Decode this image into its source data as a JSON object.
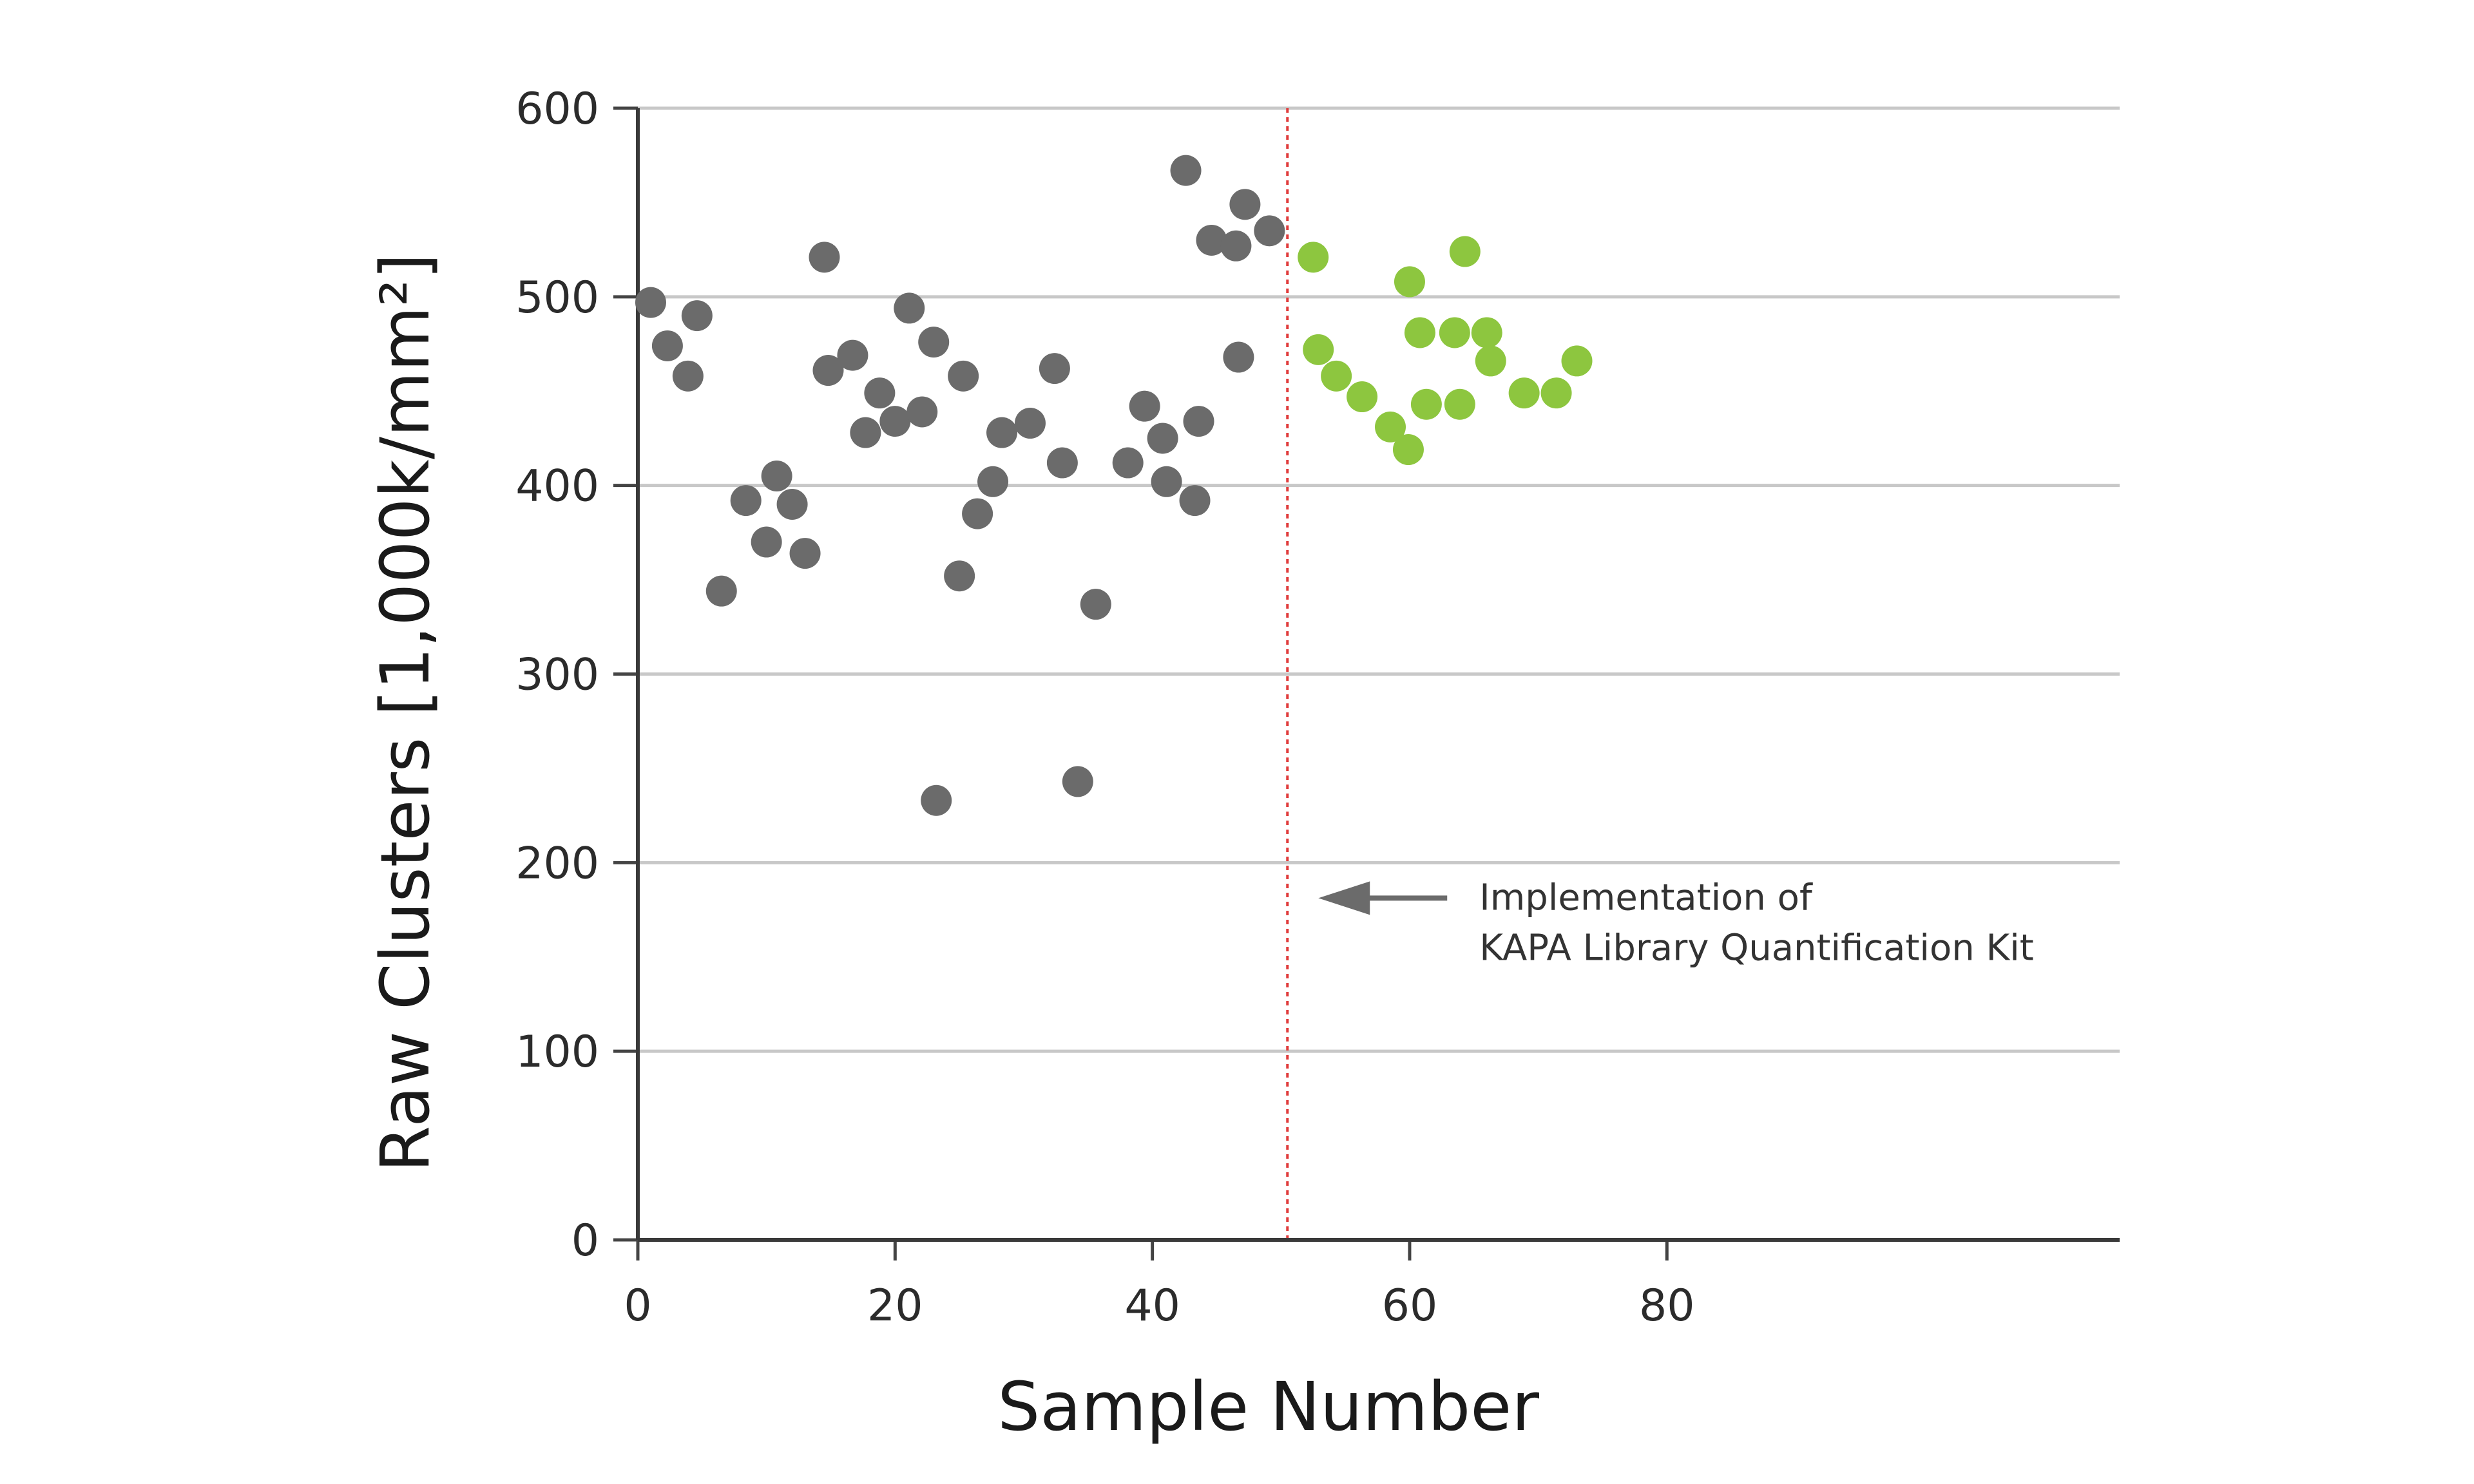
{
  "chart_data": {
    "type": "scatter",
    "xlabel": "Sample Number",
    "ylabel": "Raw Clusters [1,000k/mm²]",
    "xlim": [
      0,
      105
    ],
    "ylim": [
      0,
      600
    ],
    "x_ticks": [
      0,
      20,
      40,
      60,
      80
    ],
    "y_ticks": [
      0,
      100,
      200,
      300,
      400,
      500,
      600
    ],
    "grid": "horizontal",
    "series": [
      {
        "color": "#6b6b6b",
        "points": [
          [
            1,
            497
          ],
          [
            2.3,
            474
          ],
          [
            3.9,
            458
          ],
          [
            4.6,
            490
          ],
          [
            6.5,
            344
          ],
          [
            8.4,
            392
          ],
          [
            10,
            370
          ],
          [
            10.8,
            405
          ],
          [
            12,
            390
          ],
          [
            13,
            364
          ],
          [
            14.5,
            521
          ],
          [
            14.8,
            461
          ],
          [
            16.7,
            469
          ],
          [
            17.7,
            428
          ],
          [
            18.8,
            449
          ],
          [
            20,
            434
          ],
          [
            21.1,
            494
          ],
          [
            22.1,
            439
          ],
          [
            23,
            476
          ],
          [
            23.2,
            233
          ],
          [
            25,
            352
          ],
          [
            25.3,
            458
          ],
          [
            26.4,
            385
          ],
          [
            27.6,
            402
          ],
          [
            28.3,
            428
          ],
          [
            30.5,
            433
          ],
          [
            32.4,
            462
          ],
          [
            33,
            412
          ],
          [
            34.2,
            243
          ],
          [
            35.6,
            337
          ],
          [
            38.1,
            412
          ],
          [
            39.4,
            442
          ],
          [
            40.8,
            425
          ],
          [
            41.1,
            402
          ],
          [
            42.6,
            567
          ],
          [
            43.3,
            392
          ],
          [
            43.6,
            434
          ],
          [
            44.6,
            530
          ],
          [
            46.5,
            527
          ],
          [
            46.7,
            468
          ],
          [
            47.2,
            549
          ],
          [
            49.1,
            535
          ]
        ]
      },
      {
        "color": "#8dc63f",
        "points": [
          [
            52.5,
            521
          ],
          [
            52.9,
            472
          ],
          [
            54.3,
            458
          ],
          [
            56.3,
            447
          ],
          [
            58.5,
            431
          ],
          [
            59.9,
            419
          ],
          [
            60,
            508
          ],
          [
            60.8,
            481
          ],
          [
            61.3,
            443
          ],
          [
            63.5,
            481
          ],
          [
            63.9,
            443
          ],
          [
            64.3,
            524
          ],
          [
            66,
            481
          ],
          [
            66.3,
            466
          ],
          [
            68.9,
            449
          ],
          [
            71.4,
            449
          ],
          [
            73,
            466
          ]
        ]
      }
    ],
    "reference_line": {
      "x": 50.5,
      "color": "#e03a3a",
      "style": "dotted"
    },
    "annotation": {
      "lines": [
        "Implementation of",
        "KAPA Library Quantification Kit"
      ],
      "points_to": [
        52,
        200
      ]
    }
  }
}
